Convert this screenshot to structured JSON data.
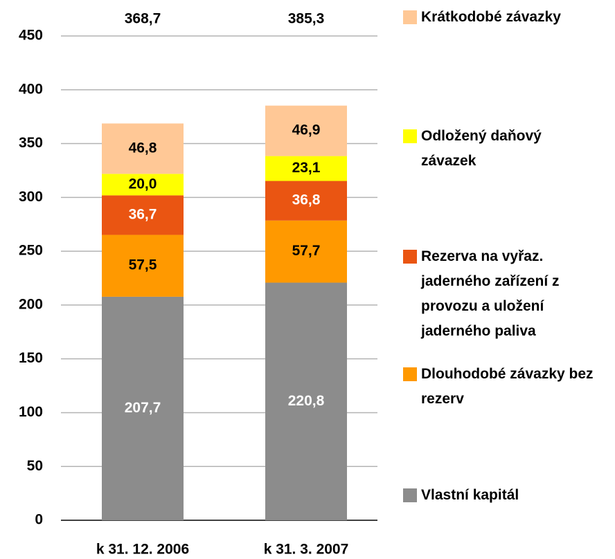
{
  "chart_data": {
    "type": "stacked_bar",
    "categories": [
      "k 31. 12. 2006",
      "k 31. 3. 2007"
    ],
    "series": [
      {
        "name": "Vlastní kapitál",
        "color": "#8c8c8c",
        "label_color": "#ffffff",
        "values": [
          207.7,
          220.8
        ],
        "value_labels": [
          "207,7",
          "220,8"
        ]
      },
      {
        "name": "Dlouhodobé závazky bez rezerv",
        "color": "#ff9900",
        "label_color": "#000000",
        "values": [
          57.5,
          57.7
        ],
        "value_labels": [
          "57,5",
          "57,7"
        ]
      },
      {
        "name": "Rezerva na vyřaz. jaderného zařízení z provozu a uložení jaderného paliva",
        "color": "#ea5512",
        "label_color": "#ffffff",
        "values": [
          36.7,
          36.8
        ],
        "value_labels": [
          "36,7",
          "36,8"
        ]
      },
      {
        "name": "Odložený daňový závazek",
        "color": "#ffff00",
        "label_color": "#000000",
        "values": [
          20.0,
          23.1
        ],
        "value_labels": [
          "20,0",
          "23,1"
        ]
      },
      {
        "name": "Krátkodobé závazky",
        "color": "#ffc896",
        "label_color": "#000000",
        "values": [
          46.8,
          46.9
        ],
        "value_labels": [
          "46,8",
          "46,9"
        ]
      }
    ],
    "totals": [
      368.7,
      385.3
    ],
    "total_labels": [
      "368,7",
      "385,3"
    ],
    "ylim": [
      0,
      450
    ],
    "yticks": [
      0,
      50,
      100,
      150,
      200,
      250,
      300,
      350,
      400,
      450
    ],
    "grid": true
  }
}
